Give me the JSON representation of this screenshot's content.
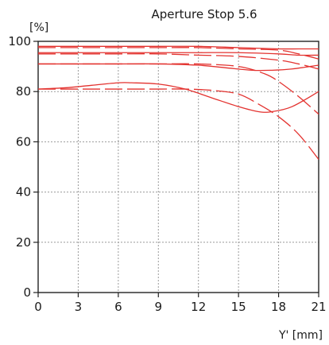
{
  "chart_data": {
    "type": "line",
    "title": "Aperture Stop 5.6",
    "ylabel": "[%]",
    "xlabel": "Y' [mm]",
    "xlim": [
      0,
      21
    ],
    "ylim": [
      0,
      100
    ],
    "xticks": [
      0,
      3,
      6,
      9,
      12,
      15,
      18,
      21
    ],
    "yticks": [
      0,
      20,
      40,
      60,
      80,
      100
    ],
    "grid": true,
    "line_color": "#e3322f",
    "series": [
      {
        "style": "solid",
        "x": [
          0,
          3,
          6,
          9,
          12,
          15,
          18,
          19.5,
          21
        ],
        "y": [
          98,
          98,
          98,
          98,
          98,
          97.5,
          97,
          97,
          97
        ]
      },
      {
        "style": "dashed",
        "x": [
          0,
          3,
          6,
          9,
          12,
          15,
          18,
          19.5,
          21
        ],
        "y": [
          97.5,
          97.5,
          97.5,
          97.5,
          97.5,
          97,
          96.5,
          95,
          93
        ]
      },
      {
        "style": "solid",
        "x": [
          0,
          3,
          6,
          9,
          12,
          15,
          18,
          19.5,
          21
        ],
        "y": [
          95.5,
          95.5,
          95.5,
          95.5,
          95.5,
          95.5,
          95,
          94.5,
          94.5
        ]
      },
      {
        "style": "dashed",
        "x": [
          0,
          3,
          6,
          9,
          12,
          15,
          18,
          19.5,
          21
        ],
        "y": [
          95,
          95,
          95,
          95,
          94.5,
          94,
          92.5,
          91,
          89
        ]
      },
      {
        "style": "solid",
        "x": [
          0,
          3,
          6,
          9,
          12,
          14,
          16,
          17.5,
          19,
          21
        ],
        "y": [
          91,
          91,
          91,
          91,
          90.5,
          89.5,
          88.5,
          88.5,
          89,
          90.5
        ]
      },
      {
        "style": "dashed",
        "x": [
          0,
          3,
          6,
          9,
          12,
          15,
          17,
          18,
          19.5,
          21
        ],
        "y": [
          91,
          91,
          91,
          91,
          91,
          90,
          87,
          84,
          78,
          71
        ]
      },
      {
        "style": "solid",
        "x": [
          0,
          2,
          4,
          6,
          7,
          9,
          11,
          13,
          15,
          16.5,
          17.5,
          19,
          21
        ],
        "y": [
          81,
          81.5,
          82.5,
          83.5,
          83.5,
          83,
          81,
          77.5,
          74,
          72,
          72,
          74,
          80
        ]
      },
      {
        "style": "dashed",
        "x": [
          0,
          3,
          6,
          9,
          11,
          13,
          15,
          16.5,
          18,
          19.5,
          21
        ],
        "y": [
          81,
          81,
          81,
          81,
          81,
          80.5,
          79,
          75,
          70,
          63,
          53
        ]
      }
    ]
  }
}
